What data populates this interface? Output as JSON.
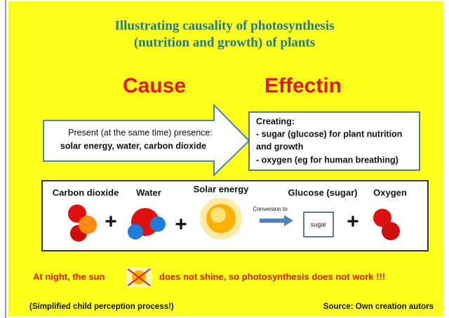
{
  "title": [
    "Illustrating causality of photosynthesis",
    "(nutrition and growth) of plants"
  ],
  "cause": {
    "heading": "Cause",
    "lines": [
      "Present (at the same time) presence:",
      "solar energy, water, carbon dioxide"
    ]
  },
  "effect": {
    "heading": "Effectin",
    "lines": [
      "Creating:",
      "- sugar (glucose) for plant nutrition",
      "and growth",
      "- oxygen (eg for human breathing)"
    ]
  },
  "equation": {
    "labels": [
      "Carbon dioxide",
      "Water",
      "Solar energy",
      "Glucose (sugar)",
      "Oxygen"
    ],
    "operators": [
      "+",
      "+",
      "+"
    ],
    "arrow_label": "Conversion to",
    "product_box": "sugar"
  },
  "note": [
    "At night, the sun",
    "does not shine, so photosynthesis does not work !!!"
  ],
  "footer": {
    "left": "(Simplified child perception process!)",
    "right": "Source: Own creation autors"
  }
}
